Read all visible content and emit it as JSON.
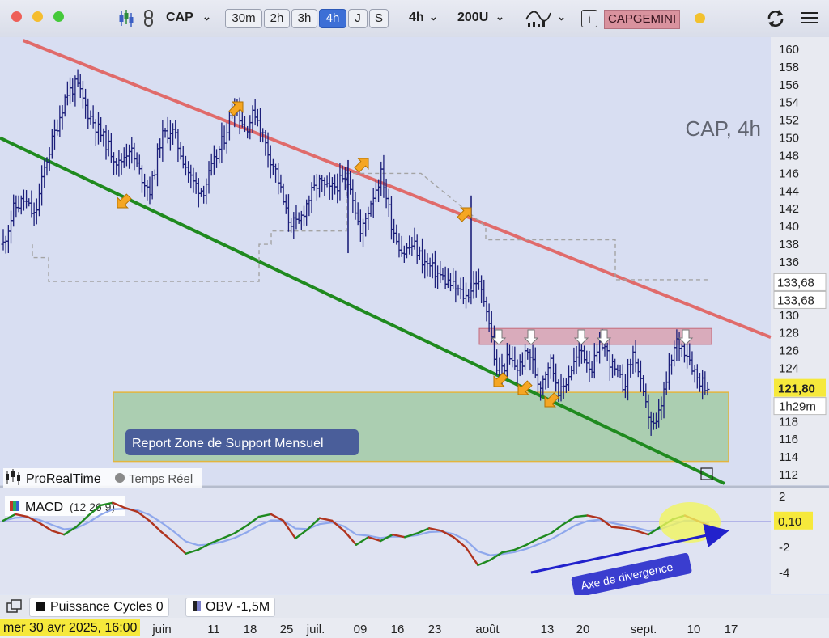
{
  "toolbar": {
    "symbol": "CAP",
    "timeframes": [
      {
        "label": "30m",
        "active": false
      },
      {
        "label": "2h",
        "active": false
      },
      {
        "label": "3h",
        "active": false
      },
      {
        "label": "4h",
        "active": true
      },
      {
        "label": "J",
        "active": false
      },
      {
        "label": "S",
        "active": false
      }
    ],
    "interval": "4h",
    "units": "200U",
    "info_icon": "i",
    "instrument": "CAPGEMINI",
    "status_color": "#f2c12e",
    "icons": [
      "candlestick-icon",
      "link-icon",
      "chevron-down-icon",
      "indicator-icon",
      "info-icon",
      "sync-icon",
      "menu-icon"
    ]
  },
  "chart_data": {
    "type": "bar",
    "title": "CAP, 4h",
    "x_ticks": [
      "juin",
      "11",
      "18",
      "25",
      "juil.",
      "09",
      "16",
      "23",
      "août",
      "13",
      "20",
      "sept.",
      "10",
      "17"
    ],
    "ylim": [
      111,
      161
    ],
    "y_ticks": [
      112,
      114,
      116,
      118,
      120,
      122,
      124,
      126,
      128,
      130,
      132,
      134,
      136,
      138,
      140,
      142,
      144,
      146,
      148,
      150,
      152,
      154,
      156,
      158,
      160
    ],
    "last_price": "121,80",
    "countdown": "1h29m",
    "price_markers": [
      "133,68",
      "133,68"
    ],
    "close_path": [
      138,
      142,
      143,
      141,
      147,
      151,
      155,
      156,
      153,
      151,
      149,
      147,
      149,
      146,
      144,
      150,
      151,
      148,
      145,
      144,
      147,
      150,
      154,
      151,
      153,
      149,
      146,
      141,
      140,
      143,
      145,
      144,
      145,
      145,
      139,
      143,
      146,
      140,
      137,
      138,
      136,
      135,
      134,
      133,
      132,
      134,
      131,
      123,
      125,
      124,
      126,
      122,
      125,
      121,
      124,
      126,
      124,
      127,
      124,
      122,
      126,
      120,
      117,
      122,
      127,
      126,
      123,
      122
    ],
    "channel": {
      "upper": {
        "from": [
          0.03,
          161
        ],
        "to": [
          1.0,
          127.5
        ],
        "color": "#e06b6b"
      },
      "lower": {
        "from": [
          0.0,
          150
        ],
        "to": [
          0.94,
          111
        ],
        "color": "#1f8a1f"
      }
    },
    "resistance_zone": {
      "low": 126.7,
      "high": 128.5
    },
    "support_zone": {
      "low": 113.5,
      "high": 121.3
    },
    "support_label": "Report Zone de Support Mensuel",
    "upper_touches": 4,
    "lower_touches": 5,
    "resistance_touches": 5,
    "macd": {
      "label": "MACD",
      "params": "(12 26 9)",
      "value": "0,10",
      "ylim": [
        -5.5,
        2.5
      ],
      "y_ticks": [
        2,
        -2,
        -4
      ],
      "macd_path": [
        0.1,
        0.6,
        0.4,
        -0.1,
        -0.7,
        -1.0,
        -0.4,
        0.5,
        1.3,
        1.5,
        1.1,
        0.8,
        0.1,
        -0.8,
        -1.6,
        -2.5,
        -2.2,
        -1.7,
        -1.3,
        -0.9,
        -0.3,
        0.4,
        0.6,
        0.1,
        -1.3,
        -0.6,
        0.3,
        0.1,
        -0.7,
        -1.8,
        -1.2,
        -1.5,
        -1.0,
        -1.2,
        -0.9,
        -0.5,
        -0.7,
        -1.2,
        -2.0,
        -3.4,
        -3.0,
        -2.4,
        -2.2,
        -1.8,
        -1.3,
        -0.9,
        -0.2,
        0.4,
        0.5,
        0.3,
        -0.4,
        -0.5,
        -0.7,
        -1.0,
        -0.4,
        0.2,
        0.5,
        0.1,
        -0.3
      ],
      "divergence_label": "Axe de divergence"
    },
    "ohlc_line_color": "#1c1f7a",
    "lowest_line_color": "#a4a4a4"
  },
  "legend": {
    "platform": "ProRealTime",
    "mode": "Temps Réel"
  },
  "bottom_indicators": [
    {
      "label": "Puissance Cycles",
      "value": "0"
    },
    {
      "label": "OBV",
      "value": "-1,5M"
    }
  ],
  "cursor_time": "mer 30 avr 2025, 16:00"
}
